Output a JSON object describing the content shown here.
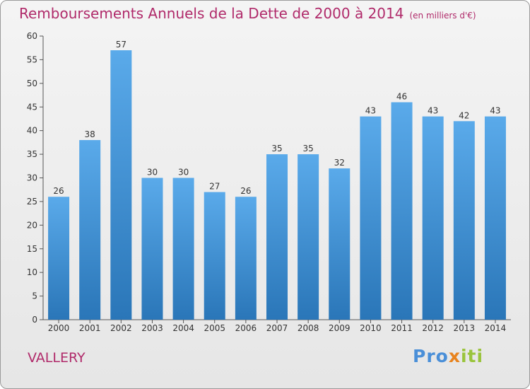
{
  "title": "Remboursements Annuels de la Dette de 2000 à 2014",
  "subtitle": "(en milliers d'€)",
  "commune": "VALLERY",
  "logo": {
    "part1": "Pro",
    "part2": "x",
    "part3": "iti"
  },
  "colors": {
    "bar_top": "#5aaaea",
    "bar_bottom": "#2a76b8",
    "title": "#b02a6a"
  },
  "chart_data": {
    "type": "bar",
    "categories": [
      "2000",
      "2001",
      "2002",
      "2003",
      "2004",
      "2005",
      "2006",
      "2007",
      "2008",
      "2009",
      "2010",
      "2011",
      "2012",
      "2013",
      "2014"
    ],
    "values": [
      26,
      38,
      57,
      30,
      30,
      27,
      26,
      35,
      35,
      32,
      43,
      46,
      43,
      42,
      43
    ],
    "title": "Remboursements Annuels de la Dette de 2000 à 2014",
    "xlabel": "",
    "ylabel": "",
    "ylim": [
      0,
      60
    ],
    "yticks": [
      0,
      5,
      10,
      15,
      20,
      25,
      30,
      35,
      40,
      45,
      50,
      55,
      60
    ],
    "grid": false,
    "data_labels": true
  }
}
